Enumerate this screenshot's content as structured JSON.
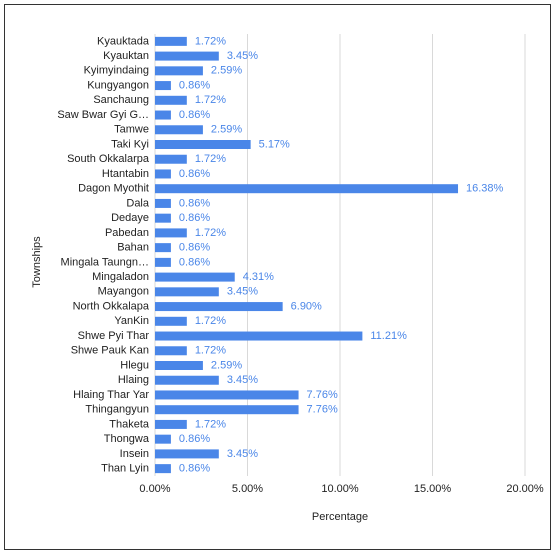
{
  "chart_data": {
    "type": "bar",
    "orientation": "horizontal",
    "x_label": "Percentage",
    "y_label": "Townships",
    "categories": [
      "Kyauktada",
      "Kyauktan",
      "Kyimyindaing",
      "Kungyangon",
      "Sanchaung",
      "Saw Bwar Gyi G…",
      "Tamwe",
      "Taki Kyi",
      "South Okkalarpa",
      "Htantabin",
      "Dagon Myothit",
      "Dala",
      "Dedaye",
      "Pabedan",
      "Bahan",
      "Mingala Taungn…",
      "Mingaladon",
      "Mayangon",
      "North Okkalapa",
      "YanKin",
      "Shwe Pyi Thar",
      "Shwe Pauk Kan",
      "Hlegu",
      "Hlaing",
      "Hlaing Thar Yar",
      "Thingangyun",
      "Thaketa",
      "Thongwa",
      "Insein",
      "Than Lyin"
    ],
    "values": [
      1.72,
      3.45,
      2.59,
      0.86,
      1.72,
      0.86,
      2.59,
      5.17,
      1.72,
      0.86,
      16.38,
      0.86,
      0.86,
      1.72,
      0.86,
      0.86,
      4.31,
      3.45,
      6.9,
      1.72,
      11.21,
      1.72,
      2.59,
      3.45,
      7.76,
      7.76,
      1.72,
      0.86,
      3.45,
      0.86
    ],
    "value_labels": [
      "1.72%",
      "3.45%",
      "2.59%",
      "0.86%",
      "1.72%",
      "0.86%",
      "2.59%",
      "5.17%",
      "1.72%",
      "0.86%",
      "16.38%",
      "0.86%",
      "0.86%",
      "1.72%",
      "0.86%",
      "0.86%",
      "4.31%",
      "3.45%",
      "6.90%",
      "1.72%",
      "11.21%",
      "1.72%",
      "2.59%",
      "3.45%",
      "7.76%",
      "7.76%",
      "1.72%",
      "0.86%",
      "3.45%",
      "0.86%"
    ],
    "color": "#4a86e8",
    "xlim": [
      0,
      20
    ],
    "xticks": [
      {
        "value": 0,
        "label": "0.00%"
      },
      {
        "value": 5,
        "label": "5.00%"
      },
      {
        "value": 10,
        "label": "10.00%"
      },
      {
        "value": 15,
        "label": "15.00%"
      },
      {
        "value": 20,
        "label": "20.00%"
      }
    ],
    "grid": true
  }
}
